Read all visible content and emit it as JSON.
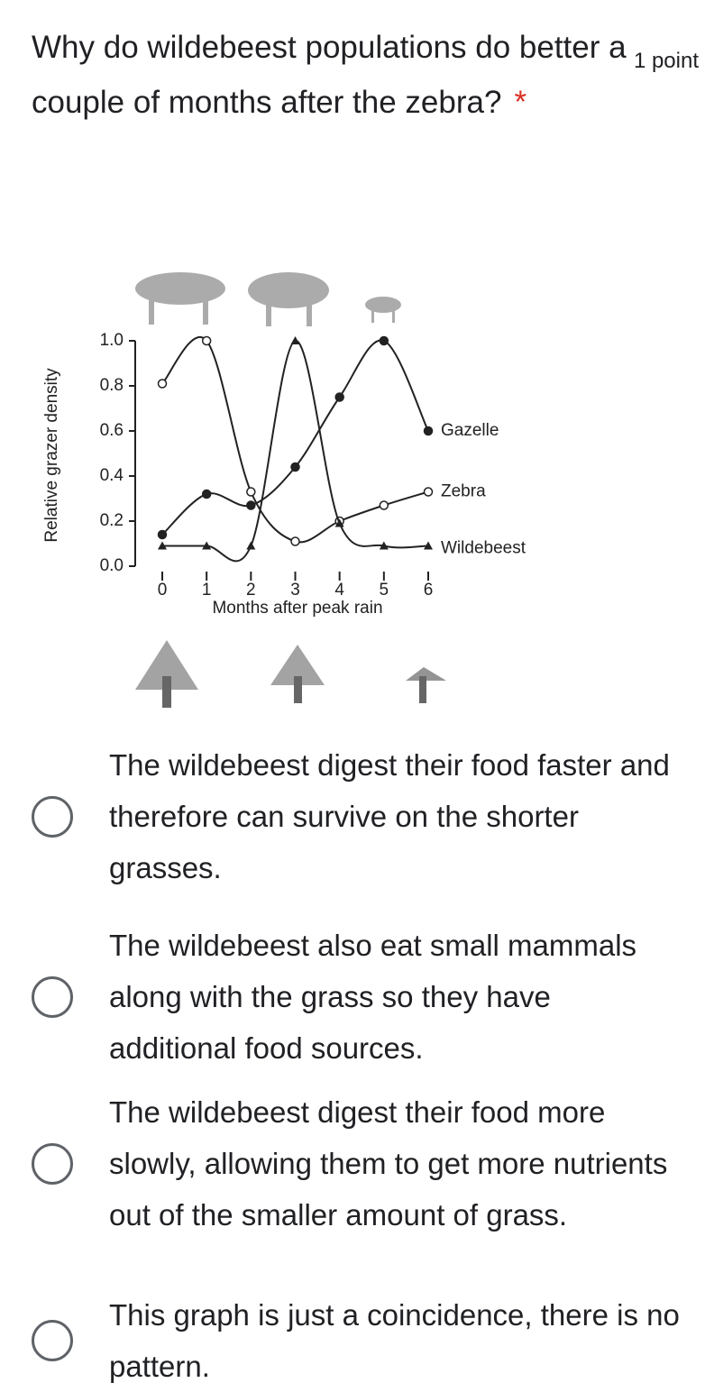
{
  "question": {
    "title": "Why do wildebeest populations do better a couple of months after the zebra?",
    "required": "*",
    "points": "1 point"
  },
  "chart_data": {
    "type": "line",
    "x": [
      0,
      1,
      2,
      3,
      4,
      5,
      6
    ],
    "xlabel": "Months after peak rain",
    "ylabel": "Relative grazer density",
    "xlim": [
      0,
      6
    ],
    "xticks": [
      0,
      1,
      2,
      3,
      4,
      5,
      6
    ],
    "ylim": [
      0,
      1
    ],
    "yticks": [
      {
        "value": 0,
        "label": "0.0"
      },
      0.2,
      0.4,
      0.6,
      0.8,
      {
        "value": 1,
        "label": "1.0"
      }
    ],
    "series": [
      {
        "name": "Gazelle",
        "color": "#222222",
        "marker": "circle",
        "values": [
          0.14,
          0.32,
          0.27,
          0.44,
          0.75,
          1.0,
          0.6
        ]
      },
      {
        "name": "Zebra",
        "color": "#222222",
        "marker": "circle-open",
        "values": [
          0.81,
          1.0,
          0.33,
          0.11,
          0.2,
          0.27,
          0.33
        ]
      },
      {
        "name": "Wildebeest",
        "color": "#222222",
        "marker": "triangle",
        "values": [
          0.09,
          0.09,
          0.09,
          1.0,
          0.19,
          0.09,
          0.09
        ]
      }
    ]
  },
  "options": [
    "The wildebeest digest their food faster and therefore can survive on the shorter grasses.",
    "The wildebeest also eat small mammals along with the grass so they have additional food sources.",
    "The wildebeest digest their food more slowly, allowing them to get more nutrients out of the smaller amount of grass.",
    "This graph is just a coincidence, there is no pattern."
  ]
}
